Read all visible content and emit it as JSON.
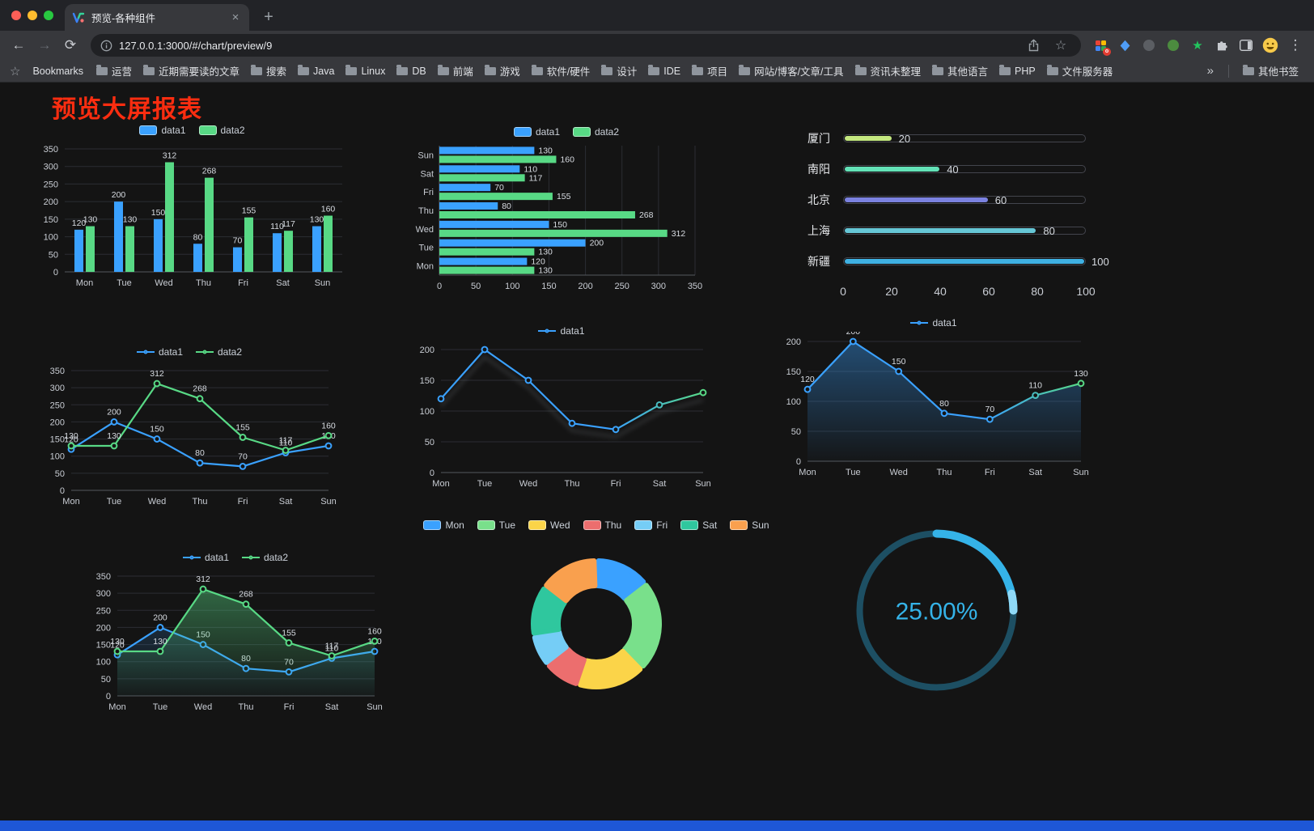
{
  "browser": {
    "tab": {
      "title": "预览-各种组件",
      "close_glyph": "×",
      "new_tab_glyph": "+"
    },
    "address": {
      "url": "127.0.0.1:3000/#/chart/preview/9"
    },
    "icons": {
      "back": "←",
      "forward": "→",
      "reload": "⟳",
      "bookmark_star": "☆",
      "menu": "⋮",
      "bookmarks_bar_star": "☆",
      "extension_star": "★"
    },
    "bookmarks_bar": {
      "label": "Bookmarks",
      "items": [
        "运营",
        "近期需要读的文章",
        "搜索",
        "Java",
        "Linux",
        "DB",
        "前端",
        "游戏",
        "软件/硬件",
        "设计",
        "IDE",
        "项目",
        "网站/博客/文章/工具",
        "资讯未整理",
        "其他语言",
        "PHP",
        "文件服务器"
      ],
      "overflow_glyph": "»",
      "other_label": "其他书签"
    }
  },
  "page": {
    "title": "预览大屏报表",
    "title_color": "#fb2d10",
    "background_color": "#141414",
    "bottom_bar_color": "#1e57d6"
  },
  "chart_data": [
    {
      "id": "grouped-bar",
      "type": "bar",
      "categories": [
        "Mon",
        "Tue",
        "Wed",
        "Thu",
        "Fri",
        "Sat",
        "Sun"
      ],
      "series": [
        {
          "name": "data1",
          "color": "#3aa1ff",
          "values": [
            120,
            200,
            150,
            80,
            70,
            110,
            130
          ]
        },
        {
          "name": "data2",
          "color": "#58d985",
          "values": [
            130,
            130,
            312,
            268,
            155,
            117,
            160
          ]
        }
      ],
      "ylim": [
        0,
        350
      ],
      "yticks": [
        0,
        50,
        100,
        150,
        200,
        250,
        300,
        350
      ],
      "legend_position": "top",
      "grid": true
    },
    {
      "id": "horizontal-bar",
      "type": "hbar",
      "categories": [
        "Mon",
        "Tue",
        "Wed",
        "Thu",
        "Fri",
        "Sat",
        "Sun"
      ],
      "series": [
        {
          "name": "data1",
          "color": "#3aa1ff",
          "values": [
            120,
            200,
            150,
            80,
            70,
            110,
            130
          ]
        },
        {
          "name": "data2",
          "color": "#58d985",
          "values": [
            130,
            130,
            312,
            268,
            155,
            117,
            160
          ]
        }
      ],
      "xlim": [
        0,
        350
      ],
      "xticks": [
        0,
        50,
        100,
        150,
        200,
        250,
        300,
        350
      ],
      "legend_position": "top",
      "grid": true
    },
    {
      "id": "progress-list",
      "type": "progress",
      "max": 100,
      "items": [
        {
          "label": "厦门",
          "value": 20,
          "color": "#c4e87f"
        },
        {
          "label": "南阳",
          "value": 40,
          "color": "#63e2b7"
        },
        {
          "label": "北京",
          "value": 60,
          "color": "#7b82e0"
        },
        {
          "label": "上海",
          "value": 80,
          "color": "#66c7d6"
        },
        {
          "label": "新疆",
          "value": 100,
          "color": "#3fb1e3"
        }
      ],
      "xticks": [
        0,
        20,
        40,
        60,
        80,
        100
      ]
    },
    {
      "id": "line-dual",
      "type": "line",
      "categories": [
        "Mon",
        "Tue",
        "Wed",
        "Thu",
        "Fri",
        "Sat",
        "Sun"
      ],
      "series": [
        {
          "name": "data1",
          "color": "#3aa1ff",
          "values": [
            120,
            200,
            150,
            80,
            70,
            110,
            130
          ]
        },
        {
          "name": "data2",
          "color": "#58d985",
          "values": [
            130,
            130,
            312,
            268,
            155,
            117,
            160
          ]
        }
      ],
      "ylim": [
        0,
        350
      ],
      "yticks": [
        0,
        50,
        100,
        150,
        200,
        250,
        300,
        350
      ],
      "point_labels": true,
      "legend_position": "top"
    },
    {
      "id": "line-gradient",
      "type": "line",
      "categories": [
        "Mon",
        "Tue",
        "Wed",
        "Thu",
        "Fri",
        "Sat",
        "Sun"
      ],
      "series": [
        {
          "name": "data1",
          "color": "#3aa1ff",
          "color_end": "#58d985",
          "gradient": true,
          "shadow": true,
          "values": [
            120,
            200,
            150,
            80,
            70,
            110,
            130
          ]
        }
      ],
      "ylim": [
        0,
        200
      ],
      "yticks": [
        0,
        50,
        100,
        150,
        200
      ],
      "point_labels": false,
      "legend_position": "top"
    },
    {
      "id": "area-single",
      "type": "line",
      "categories": [
        "Mon",
        "Tue",
        "Wed",
        "Thu",
        "Fri",
        "Sat",
        "Sun"
      ],
      "series": [
        {
          "name": "data1",
          "color": "#3aa1ff",
          "color_end": "#58d985",
          "gradient": true,
          "area": true,
          "area_opacity": 0.4,
          "values": [
            120,
            200,
            150,
            80,
            70,
            110,
            130
          ]
        }
      ],
      "ylim": [
        0,
        200
      ],
      "yticks": [
        0,
        50,
        100,
        150,
        200
      ],
      "point_labels": true,
      "legend_position": "top"
    },
    {
      "id": "line-dual-area",
      "type": "line",
      "categories": [
        "Mon",
        "Tue",
        "Wed",
        "Thu",
        "Fri",
        "Sat",
        "Sun"
      ],
      "series": [
        {
          "name": "data1",
          "color": "#3aa1ff",
          "area": true,
          "area_opacity": 0.16,
          "values": [
            120,
            200,
            150,
            80,
            70,
            110,
            130
          ]
        },
        {
          "name": "data2",
          "color": "#58d985",
          "area": true,
          "area_opacity": 0.42,
          "values": [
            130,
            130,
            312,
            268,
            155,
            117,
            160
          ]
        }
      ],
      "ylim": [
        0,
        350
      ],
      "yticks": [
        0,
        50,
        100,
        150,
        200,
        250,
        300,
        350
      ],
      "point_labels": true,
      "legend_position": "top"
    },
    {
      "id": "donut",
      "type": "donut",
      "categories": [
        "Mon",
        "Tue",
        "Wed",
        "Thu",
        "Fri",
        "Sat",
        "Sun"
      ],
      "values": [
        120,
        200,
        150,
        80,
        70,
        110,
        130
      ],
      "colors": [
        "#3aa1ff",
        "#79e08b",
        "#fbd449",
        "#ec6e6e",
        "#75cdf6",
        "#2fc79e",
        "#f9a04e"
      ],
      "legend_position": "top"
    },
    {
      "id": "gauge",
      "type": "gauge",
      "value": 25,
      "label": "25.00%",
      "color": "#35b3e8",
      "tip_color": "#8fd9f7",
      "track_color": "#1d4f63"
    }
  ]
}
